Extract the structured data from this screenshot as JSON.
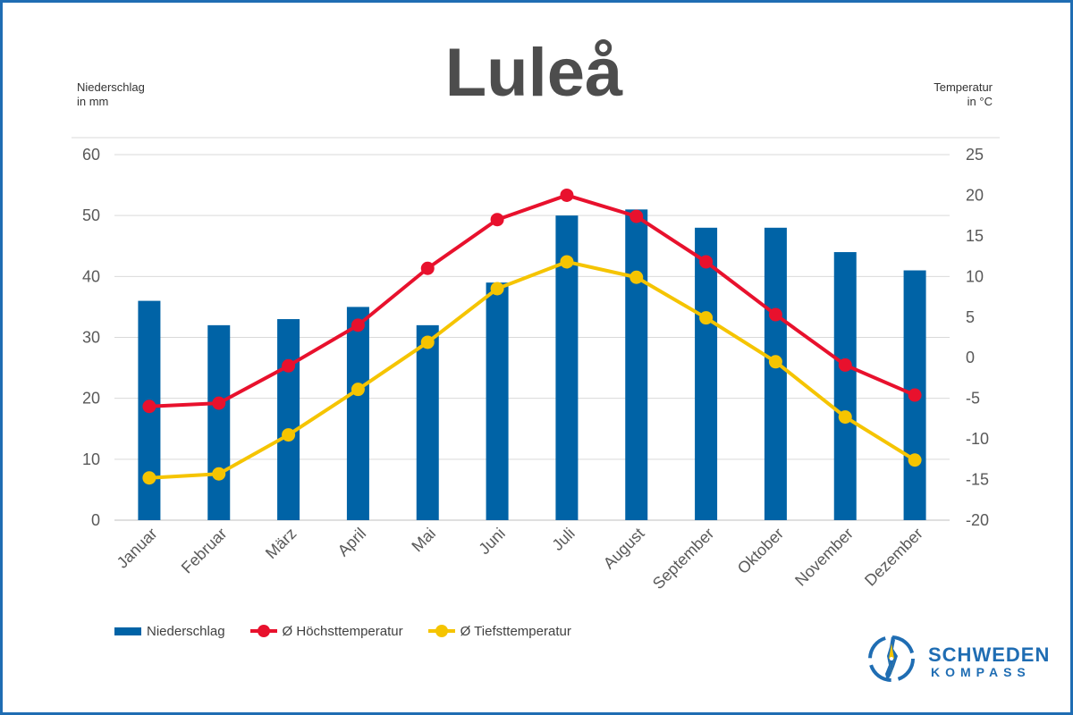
{
  "chart_data": {
    "type": "bar",
    "title": "Luleå",
    "left_axis_label": [
      "Niederschlag",
      "in mm"
    ],
    "right_axis_label": [
      "Temperatur",
      "in °C"
    ],
    "categories": [
      "Januar",
      "Februar",
      "März",
      "April",
      "Mai",
      "Juni",
      "Juli",
      "August",
      "September",
      "Oktober",
      "November",
      "Dezember"
    ],
    "series": [
      {
        "name": "Niederschlag",
        "kind": "bar",
        "axis": "left",
        "color": "#0063a6",
        "values": [
          36,
          32,
          33,
          35,
          32,
          39,
          50,
          51,
          48,
          48,
          44,
          41
        ]
      },
      {
        "name": "Ø Höchsttemperatur",
        "kind": "line",
        "axis": "right",
        "color": "#e8112d",
        "values": [
          -6,
          -5.6,
          -1,
          4,
          11,
          17,
          20,
          17.4,
          11.8,
          5.3,
          -0.9,
          -4.6
        ]
      },
      {
        "name": "Ø Tiefsttemperatur",
        "kind": "line",
        "axis": "right",
        "color": "#f5c400",
        "values": [
          -14.8,
          -14.3,
          -9.5,
          -3.9,
          1.9,
          8.5,
          11.8,
          9.9,
          4.9,
          -0.5,
          -7.3,
          -12.6
        ]
      }
    ],
    "ylim_left": [
      0,
      60
    ],
    "yticks_left": [
      0,
      10,
      20,
      30,
      40,
      50,
      60
    ],
    "ylim_right": [
      -20,
      25
    ],
    "yticks_right": [
      -20,
      -15,
      -10,
      -5,
      0,
      5,
      10,
      15,
      20,
      25
    ],
    "grid": true,
    "legend_position": "bottom-left"
  },
  "brand": {
    "line1": "SCHWEDEN",
    "line2": "KOMPASS",
    "color": "#1f6db3"
  }
}
